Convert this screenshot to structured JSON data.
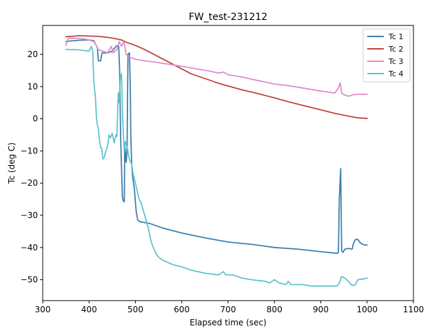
{
  "chart_data": {
    "type": "line",
    "title": "FW_test-231212",
    "xlabel": "Elapsed time (sec)",
    "ylabel": "Tc  (deg C)",
    "xlim": [
      300,
      1100
    ],
    "ylim": [
      -56.5,
      29
    ],
    "xticks": [
      300,
      400,
      500,
      600,
      700,
      800,
      900,
      1000,
      1100
    ],
    "yticks": [
      -50,
      -40,
      -30,
      -20,
      -10,
      0,
      10,
      20
    ],
    "grid": false,
    "legend_position": "top-right",
    "series": [
      {
        "name": "Tc 1",
        "color": "#3c7fae",
        "points": [
          [
            350,
            24
          ],
          [
            360,
            24.2
          ],
          [
            380,
            24.4
          ],
          [
            400,
            24.5
          ],
          [
            410,
            24.3
          ],
          [
            418,
            22
          ],
          [
            420,
            18
          ],
          [
            425,
            18
          ],
          [
            428,
            20.5
          ],
          [
            440,
            20.5
          ],
          [
            450,
            21
          ],
          [
            458,
            22.5
          ],
          [
            462,
            22.8
          ],
          [
            464,
            22.5
          ],
          [
            466,
            15
          ],
          [
            468,
            -5
          ],
          [
            470,
            -15
          ],
          [
            472,
            -24.5
          ],
          [
            474,
            -25.5
          ],
          [
            476,
            -25.8
          ],
          [
            477,
            -9
          ],
          [
            478,
            -9
          ],
          [
            479,
            -13
          ],
          [
            480,
            -13.5
          ],
          [
            482,
            -10
          ],
          [
            484,
            20
          ],
          [
            487,
            20.5
          ],
          [
            489,
            10
          ],
          [
            490,
            -5
          ],
          [
            492,
            -14
          ],
          [
            494,
            -18
          ],
          [
            496,
            -20
          ],
          [
            498,
            -22
          ],
          [
            500,
            -26
          ],
          [
            502,
            -29
          ],
          [
            505,
            -31.5
          ],
          [
            510,
            -32
          ],
          [
            530,
            -32.5
          ],
          [
            560,
            -34
          ],
          [
            600,
            -35.5
          ],
          [
            650,
            -37
          ],
          [
            700,
            -38.3
          ],
          [
            750,
            -39
          ],
          [
            800,
            -40
          ],
          [
            850,
            -40.5
          ],
          [
            900,
            -41.3
          ],
          [
            935,
            -41.8
          ],
          [
            938,
            -41.5
          ],
          [
            940,
            -25
          ],
          [
            943,
            -15.5
          ],
          [
            945,
            -41
          ],
          [
            948,
            -41.5
          ],
          [
            952,
            -40.5
          ],
          [
            960,
            -40.3
          ],
          [
            968,
            -40.5
          ],
          [
            970,
            -39
          ],
          [
            975,
            -37.5
          ],
          [
            980,
            -37.5
          ],
          [
            985,
            -38.5
          ],
          [
            990,
            -39
          ],
          [
            995,
            -39.2
          ],
          [
            1000,
            -39.2
          ]
        ]
      },
      {
        "name": "Tc 2",
        "color": "#c0443c",
        "points": [
          [
            350,
            25.5
          ],
          [
            380,
            25.8
          ],
          [
            400,
            25.7
          ],
          [
            420,
            25.6
          ],
          [
            440,
            25.3
          ],
          [
            460,
            24.8
          ],
          [
            470,
            24.5
          ],
          [
            480,
            23.8
          ],
          [
            500,
            22.8
          ],
          [
            520,
            21.5
          ],
          [
            540,
            20
          ],
          [
            560,
            18.5
          ],
          [
            580,
            17
          ],
          [
            600,
            15.5
          ],
          [
            620,
            14
          ],
          [
            650,
            12.5
          ],
          [
            680,
            11
          ],
          [
            700,
            10.2
          ],
          [
            730,
            9
          ],
          [
            760,
            8
          ],
          [
            800,
            6.5
          ],
          [
            830,
            5.3
          ],
          [
            860,
            4.2
          ],
          [
            900,
            2.8
          ],
          [
            930,
            1.7
          ],
          [
            960,
            0.8
          ],
          [
            980,
            0.3
          ],
          [
            1000,
            0.1
          ]
        ]
      },
      {
        "name": "Tc 3",
        "color": "#dd8cca",
        "points": [
          [
            350,
            22.8
          ],
          [
            355,
            25
          ],
          [
            370,
            25
          ],
          [
            390,
            24.8
          ],
          [
            400,
            24.5
          ],
          [
            410,
            24
          ],
          [
            415,
            23
          ],
          [
            420,
            21.5
          ],
          [
            430,
            21
          ],
          [
            440,
            20.5
          ],
          [
            448,
            22.5
          ],
          [
            452,
            20.5
          ],
          [
            460,
            21.5
          ],
          [
            465,
            24
          ],
          [
            470,
            22.5
          ],
          [
            475,
            24
          ],
          [
            480,
            20
          ],
          [
            490,
            19
          ],
          [
            500,
            18.5
          ],
          [
            520,
            18
          ],
          [
            540,
            17.7
          ],
          [
            560,
            17.2
          ],
          [
            580,
            16.8
          ],
          [
            600,
            16.3
          ],
          [
            620,
            15.8
          ],
          [
            640,
            15.3
          ],
          [
            660,
            14.8
          ],
          [
            680,
            14.2
          ],
          [
            690,
            14.5
          ],
          [
            700,
            13.7
          ],
          [
            730,
            13
          ],
          [
            760,
            12
          ],
          [
            800,
            10.8
          ],
          [
            830,
            10.3
          ],
          [
            860,
            9.6
          ],
          [
            900,
            8.6
          ],
          [
            930,
            8
          ],
          [
            938,
            9.5
          ],
          [
            942,
            11.2
          ],
          [
            945,
            8
          ],
          [
            950,
            7.5
          ],
          [
            960,
            7
          ],
          [
            970,
            7.5
          ],
          [
            980,
            7.6
          ],
          [
            1000,
            7.6
          ]
        ]
      },
      {
        "name": "Tc 4",
        "color": "#5dc4cf",
        "points": [
          [
            350,
            21.5
          ],
          [
            370,
            21.5
          ],
          [
            385,
            21.3
          ],
          [
            400,
            21
          ],
          [
            405,
            22.5
          ],
          [
            408,
            21
          ],
          [
            410,
            12
          ],
          [
            414,
            6
          ],
          [
            416,
            0
          ],
          [
            418,
            -2
          ],
          [
            420,
            -3
          ],
          [
            422,
            -6
          ],
          [
            425,
            -9
          ],
          [
            427,
            -9
          ],
          [
            430,
            -12.5
          ],
          [
            433,
            -12
          ],
          [
            436,
            -10
          ],
          [
            440,
            -8.5
          ],
          [
            443,
            -5
          ],
          [
            446,
            -6
          ],
          [
            450,
            -4.5
          ],
          [
            454,
            -7.5
          ],
          [
            458,
            -5
          ],
          [
            460,
            -5.5
          ],
          [
            463,
            8
          ],
          [
            465,
            5
          ],
          [
            467,
            12
          ],
          [
            470,
            14
          ],
          [
            472,
            2
          ],
          [
            474,
            -5
          ],
          [
            476,
            -10
          ],
          [
            478,
            -7
          ],
          [
            480,
            -8
          ],
          [
            484,
            -10
          ],
          [
            486,
            -12
          ],
          [
            488,
            -13
          ],
          [
            492,
            -14
          ],
          [
            495,
            -17
          ],
          [
            500,
            -20
          ],
          [
            504,
            -22.5
          ],
          [
            508,
            -25
          ],
          [
            512,
            -26
          ],
          [
            516,
            -28
          ],
          [
            520,
            -30
          ],
          [
            524,
            -32
          ],
          [
            528,
            -34
          ],
          [
            532,
            -37
          ],
          [
            536,
            -39
          ],
          [
            540,
            -40.5
          ],
          [
            545,
            -42
          ],
          [
            550,
            -43
          ],
          [
            560,
            -44
          ],
          [
            580,
            -45.3
          ],
          [
            600,
            -46
          ],
          [
            620,
            -47
          ],
          [
            650,
            -48
          ],
          [
            680,
            -48.5
          ],
          [
            690,
            -47.5
          ],
          [
            695,
            -48.5
          ],
          [
            710,
            -48.5
          ],
          [
            730,
            -49.5
          ],
          [
            750,
            -50
          ],
          [
            780,
            -50.5
          ],
          [
            790,
            -51
          ],
          [
            800,
            -50
          ],
          [
            810,
            -51
          ],
          [
            825,
            -51.5
          ],
          [
            830,
            -50.5
          ],
          [
            835,
            -51.5
          ],
          [
            860,
            -51.5
          ],
          [
            880,
            -52
          ],
          [
            900,
            -52
          ],
          [
            935,
            -52
          ],
          [
            940,
            -51
          ],
          [
            945,
            -49
          ],
          [
            952,
            -49.5
          ],
          [
            960,
            -50.5
          ],
          [
            965,
            -51.5
          ],
          [
            970,
            -51.8
          ],
          [
            975,
            -51.5
          ],
          [
            980,
            -50
          ],
          [
            990,
            -49.8
          ],
          [
            1000,
            -49.5
          ]
        ]
      }
    ]
  }
}
